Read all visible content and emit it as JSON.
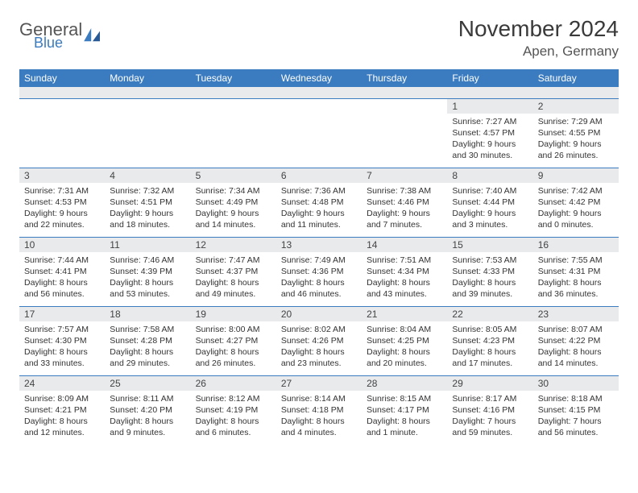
{
  "brand": {
    "word1": "General",
    "word2": "Blue",
    "accent": "#3b7bbf",
    "text_color": "#555555"
  },
  "title": "November 2024",
  "location": "Apen, Germany",
  "colors": {
    "header_bg": "#3b7bbf",
    "header_fg": "#ffffff",
    "daynum_bg": "#e8eaec",
    "border": "#3b7bbf",
    "body_text": "#333333"
  },
  "columns": [
    "Sunday",
    "Monday",
    "Tuesday",
    "Wednesday",
    "Thursday",
    "Friday",
    "Saturday"
  ],
  "weeks": [
    [
      null,
      null,
      null,
      null,
      null,
      {
        "n": "1",
        "sr": "7:27 AM",
        "ss": "4:57 PM",
        "dl": "9 hours and 30 minutes."
      },
      {
        "n": "2",
        "sr": "7:29 AM",
        "ss": "4:55 PM",
        "dl": "9 hours and 26 minutes."
      }
    ],
    [
      {
        "n": "3",
        "sr": "7:31 AM",
        "ss": "4:53 PM",
        "dl": "9 hours and 22 minutes."
      },
      {
        "n": "4",
        "sr": "7:32 AM",
        "ss": "4:51 PM",
        "dl": "9 hours and 18 minutes."
      },
      {
        "n": "5",
        "sr": "7:34 AM",
        "ss": "4:49 PM",
        "dl": "9 hours and 14 minutes."
      },
      {
        "n": "6",
        "sr": "7:36 AM",
        "ss": "4:48 PM",
        "dl": "9 hours and 11 minutes."
      },
      {
        "n": "7",
        "sr": "7:38 AM",
        "ss": "4:46 PM",
        "dl": "9 hours and 7 minutes."
      },
      {
        "n": "8",
        "sr": "7:40 AM",
        "ss": "4:44 PM",
        "dl": "9 hours and 3 minutes."
      },
      {
        "n": "9",
        "sr": "7:42 AM",
        "ss": "4:42 PM",
        "dl": "9 hours and 0 minutes."
      }
    ],
    [
      {
        "n": "10",
        "sr": "7:44 AM",
        "ss": "4:41 PM",
        "dl": "8 hours and 56 minutes."
      },
      {
        "n": "11",
        "sr": "7:46 AM",
        "ss": "4:39 PM",
        "dl": "8 hours and 53 minutes."
      },
      {
        "n": "12",
        "sr": "7:47 AM",
        "ss": "4:37 PM",
        "dl": "8 hours and 49 minutes."
      },
      {
        "n": "13",
        "sr": "7:49 AM",
        "ss": "4:36 PM",
        "dl": "8 hours and 46 minutes."
      },
      {
        "n": "14",
        "sr": "7:51 AM",
        "ss": "4:34 PM",
        "dl": "8 hours and 43 minutes."
      },
      {
        "n": "15",
        "sr": "7:53 AM",
        "ss": "4:33 PM",
        "dl": "8 hours and 39 minutes."
      },
      {
        "n": "16",
        "sr": "7:55 AM",
        "ss": "4:31 PM",
        "dl": "8 hours and 36 minutes."
      }
    ],
    [
      {
        "n": "17",
        "sr": "7:57 AM",
        "ss": "4:30 PM",
        "dl": "8 hours and 33 minutes."
      },
      {
        "n": "18",
        "sr": "7:58 AM",
        "ss": "4:28 PM",
        "dl": "8 hours and 29 minutes."
      },
      {
        "n": "19",
        "sr": "8:00 AM",
        "ss": "4:27 PM",
        "dl": "8 hours and 26 minutes."
      },
      {
        "n": "20",
        "sr": "8:02 AM",
        "ss": "4:26 PM",
        "dl": "8 hours and 23 minutes."
      },
      {
        "n": "21",
        "sr": "8:04 AM",
        "ss": "4:25 PM",
        "dl": "8 hours and 20 minutes."
      },
      {
        "n": "22",
        "sr": "8:05 AM",
        "ss": "4:23 PM",
        "dl": "8 hours and 17 minutes."
      },
      {
        "n": "23",
        "sr": "8:07 AM",
        "ss": "4:22 PM",
        "dl": "8 hours and 14 minutes."
      }
    ],
    [
      {
        "n": "24",
        "sr": "8:09 AM",
        "ss": "4:21 PM",
        "dl": "8 hours and 12 minutes."
      },
      {
        "n": "25",
        "sr": "8:11 AM",
        "ss": "4:20 PM",
        "dl": "8 hours and 9 minutes."
      },
      {
        "n": "26",
        "sr": "8:12 AM",
        "ss": "4:19 PM",
        "dl": "8 hours and 6 minutes."
      },
      {
        "n": "27",
        "sr": "8:14 AM",
        "ss": "4:18 PM",
        "dl": "8 hours and 4 minutes."
      },
      {
        "n": "28",
        "sr": "8:15 AM",
        "ss": "4:17 PM",
        "dl": "8 hours and 1 minute."
      },
      {
        "n": "29",
        "sr": "8:17 AM",
        "ss": "4:16 PM",
        "dl": "7 hours and 59 minutes."
      },
      {
        "n": "30",
        "sr": "8:18 AM",
        "ss": "4:15 PM",
        "dl": "7 hours and 56 minutes."
      }
    ]
  ],
  "labels": {
    "sunrise": "Sunrise:",
    "sunset": "Sunset:",
    "daylight": "Daylight:"
  }
}
